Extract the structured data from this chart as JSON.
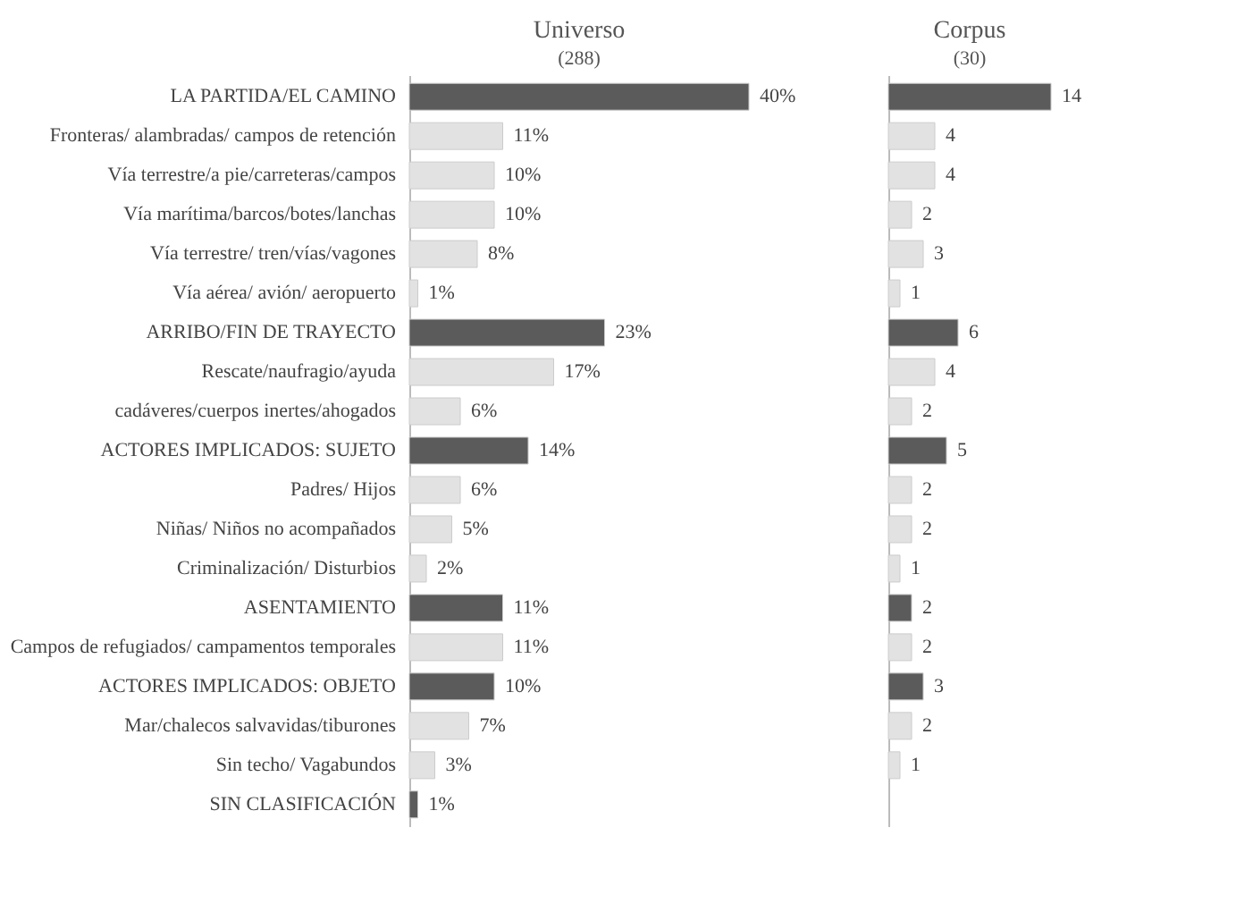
{
  "chart_data": [
    {
      "type": "bar",
      "orientation": "horizontal",
      "title": "Universo",
      "subtitle": "(288)",
      "categories": [
        "LA PARTIDA/EL CAMINO",
        "Fronteras/ alambradas/ campos de retención",
        "Vía terrestre/a pie/carreteras/campos",
        "Vía marítima/barcos/botes/lanchas",
        "Vía terrestre/ tren/vías/vagones",
        "Vía aérea/ avión/ aeropuerto",
        "ARRIBO/FIN DE TRAYECTO",
        "Rescate/naufragio/ayuda",
        "cadáveres/cuerpos inertes/ahogados",
        "ACTORES IMPLICADOS: SUJETO",
        "Padres/ Hijos",
        "Niñas/ Niños no acompañados",
        "Criminalización/ Disturbios",
        "ASENTAMIENTO",
        "Campos de refugiados/ campamentos temporales",
        "ACTORES IMPLICADOS: OBJETO",
        "Mar/chalecos salvavidas/tiburones",
        "Sin techo/ Vagabundos",
        "SIN CLASIFICACIÓN"
      ],
      "values": [
        40,
        11,
        10,
        10,
        8,
        1,
        23,
        17,
        6,
        14,
        6,
        5,
        2,
        11,
        11,
        10,
        7,
        3,
        1
      ],
      "value_labels": [
        "40%",
        "11%",
        "10%",
        "10%",
        "8%",
        "1%",
        "23%",
        "17%",
        "6%",
        "14%",
        "6%",
        "5%",
        "2%",
        "11%",
        "11%",
        "10%",
        "7%",
        "3%",
        "1%"
      ],
      "colors": [
        "#5b5b5b",
        "#e2e2e2",
        "#e2e2e2",
        "#e2e2e2",
        "#e2e2e2",
        "#e2e2e2",
        "#5b5b5b",
        "#e2e2e2",
        "#e2e2e2",
        "#5b5b5b",
        "#e2e2e2",
        "#e2e2e2",
        "#e2e2e2",
        "#5b5b5b",
        "#e2e2e2",
        "#5b5b5b",
        "#e2e2e2",
        "#e2e2e2",
        "#5b5b5b"
      ],
      "tick_labels": "y"
    },
    {
      "type": "bar",
      "orientation": "horizontal",
      "title": "Corpus",
      "subtitle": "(30)",
      "categories": [
        null,
        null,
        null,
        null,
        null,
        null,
        null,
        null,
        null,
        null,
        null,
        null,
        null,
        null,
        null,
        null,
        null,
        null,
        null
      ],
      "values": [
        14,
        4,
        4,
        2,
        3,
        1,
        6,
        4,
        2,
        5,
        2,
        2,
        1,
        2,
        2,
        3,
        2,
        1,
        null
      ],
      "colors": [
        "#5b5b5b",
        "#e2e2e2",
        "#e2e2e2",
        "#e2e2e2",
        "#e2e2e2",
        "#e2e2e2",
        "#5b5b5b",
        "#e2e2e2",
        "#e2e2e2",
        "#5b5b5b",
        "#e2e2e2",
        "#e2e2e2",
        "#e2e2e2",
        "#5b5b5b",
        "#e2e2e2",
        "#5b5b5b",
        "#e2e2e2",
        "#e2e2e2",
        "#5b5b5b"
      ],
      "data_labels": true,
      "tick_labels": false
    }
  ]
}
